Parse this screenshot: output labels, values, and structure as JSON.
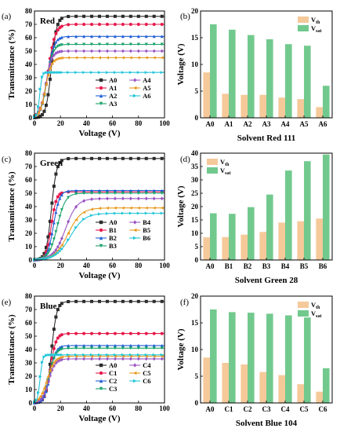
{
  "colors": {
    "vth": "#f5c99a",
    "vsat": "#72c98e"
  },
  "chart_data": [
    {
      "panel": "(a)",
      "type": "line",
      "title": "Red",
      "xlabel": "Voltage (V)",
      "ylabel": "Transmittance (%)",
      "xlim": [
        0,
        100
      ],
      "ylim": [
        0,
        80
      ],
      "xticks": [
        0,
        20,
        40,
        60,
        80,
        100
      ],
      "yticks": [
        0,
        10,
        20,
        30,
        40,
        50,
        60,
        70,
        80
      ],
      "legend_position": "bottom-right",
      "series": [
        {
          "name": "A0",
          "color": "#2b2b2b",
          "marker": "square",
          "vth": 8.5,
          "vsat": 17.5,
          "tmax": 76
        },
        {
          "name": "A1",
          "color": "#e6194b",
          "marker": "circle",
          "vth": 4.5,
          "vsat": 16.5,
          "tmax": 70
        },
        {
          "name": "A2",
          "color": "#1f5fd6",
          "marker": "triangle",
          "vth": 4.3,
          "vsat": 15.5,
          "tmax": 61
        },
        {
          "name": "A3",
          "color": "#1aa36b",
          "marker": "triangle-down",
          "vth": 4.3,
          "vsat": 14.7,
          "tmax": 55
        },
        {
          "name": "A4",
          "color": "#9a55c4",
          "marker": "diamond",
          "vth": 3.8,
          "vsat": 13.8,
          "tmax": 50
        },
        {
          "name": "A5",
          "color": "#e89a1c",
          "marker": "triangle-left",
          "vth": 3.5,
          "vsat": 13.5,
          "tmax": 45
        },
        {
          "name": "A6",
          "color": "#20c5d8",
          "marker": "triangle-right",
          "vth": 2.0,
          "vsat": 6.0,
          "tmax": 34
        }
      ]
    },
    {
      "panel": "(b)",
      "type": "bar",
      "xlabel": "Solvent Red 111",
      "ylabel": "Voltage (V)",
      "ylim": [
        0,
        20
      ],
      "yticks": [
        0,
        5,
        10,
        15,
        20
      ],
      "legend_position": "top-right",
      "categories": [
        "A0",
        "A1",
        "A2",
        "A3",
        "A4",
        "A5",
        "A6"
      ],
      "series": [
        {
          "name": "Vth",
          "name_base": "V",
          "name_sub": "th",
          "values": [
            8.5,
            4.5,
            4.3,
            4.3,
            3.8,
            3.5,
            2.0
          ]
        },
        {
          "name": "Vsat",
          "name_base": "V",
          "name_sub": "sat",
          "values": [
            17.5,
            16.5,
            15.5,
            14.7,
            13.8,
            13.5,
            6.0
          ]
        }
      ]
    },
    {
      "panel": "(c)",
      "type": "line",
      "title": "Green",
      "xlabel": "Voltage (V)",
      "ylabel": "Transmittance (%)",
      "xlim": [
        0,
        100
      ],
      "ylim": [
        0,
        80
      ],
      "xticks": [
        0,
        20,
        40,
        60,
        80,
        100
      ],
      "yticks": [
        0,
        10,
        20,
        30,
        40,
        50,
        60,
        70,
        80
      ],
      "legend_position": "bottom-right",
      "series": [
        {
          "name": "A0",
          "color": "#2b2b2b",
          "marker": "square",
          "vth": 8.5,
          "vsat": 17.5,
          "tmax": 76
        },
        {
          "name": "B1",
          "color": "#e6194b",
          "marker": "circle",
          "vth": 8.6,
          "vsat": 17.3,
          "tmax": 51
        },
        {
          "name": "B2",
          "color": "#1f5fd6",
          "marker": "triangle",
          "vth": 9.5,
          "vsat": 19.8,
          "tmax": 52
        },
        {
          "name": "B3",
          "color": "#1aa36b",
          "marker": "triangle-down",
          "vth": 10.5,
          "vsat": 24.5,
          "tmax": 50
        },
        {
          "name": "B4",
          "color": "#9a55c4",
          "marker": "diamond",
          "vth": 14.0,
          "vsat": 33.5,
          "tmax": 46
        },
        {
          "name": "B5",
          "color": "#e89a1c",
          "marker": "triangle-left",
          "vth": 14.5,
          "vsat": 37.0,
          "tmax": 39
        },
        {
          "name": "B6",
          "color": "#20c5d8",
          "marker": "triangle-right",
          "vth": 15.5,
          "vsat": 39.5,
          "tmax": 35
        }
      ]
    },
    {
      "panel": "(d)",
      "type": "bar",
      "xlabel": "Solvent Green 28",
      "ylabel": "Voltage (V)",
      "ylim": [
        0,
        40
      ],
      "yticks": [
        0,
        5,
        10,
        15,
        20,
        25,
        30,
        35,
        40
      ],
      "legend_position": "top-left",
      "categories": [
        "A0",
        "B1",
        "B2",
        "B3",
        "B4",
        "B5",
        "B6"
      ],
      "series": [
        {
          "name": "Vth",
          "name_base": "V",
          "name_sub": "th",
          "values": [
            8.5,
            8.6,
            9.5,
            10.5,
            14.0,
            14.5,
            15.5
          ]
        },
        {
          "name": "Vsat",
          "name_base": "V",
          "name_sub": "sat",
          "values": [
            17.5,
            17.3,
            19.8,
            24.5,
            33.5,
            37.0,
            39.5
          ]
        }
      ]
    },
    {
      "panel": "(e)",
      "type": "line",
      "title": "Blue",
      "xlabel": "Voltage (V)",
      "ylabel": "Transmittance (%)",
      "xlim": [
        0,
        100
      ],
      "ylim": [
        0,
        80
      ],
      "xticks": [
        0,
        20,
        40,
        60,
        80,
        100
      ],
      "yticks": [
        0,
        10,
        20,
        30,
        40,
        50,
        60,
        70,
        80
      ],
      "legend_position": "bottom-right",
      "series": [
        {
          "name": "A0",
          "color": "#2b2b2b",
          "marker": "square",
          "vth": 8.5,
          "vsat": 17.5,
          "tmax": 76
        },
        {
          "name": "C1",
          "color": "#e6194b",
          "marker": "circle",
          "vth": 7.5,
          "vsat": 17.0,
          "tmax": 52
        },
        {
          "name": "C2",
          "color": "#1f5fd6",
          "marker": "triangle",
          "vth": 7.2,
          "vsat": 16.9,
          "tmax": 43
        },
        {
          "name": "C3",
          "color": "#1aa36b",
          "marker": "triangle-down",
          "vth": 5.8,
          "vsat": 16.7,
          "tmax": 41
        },
        {
          "name": "C4",
          "color": "#9a55c4",
          "marker": "diamond",
          "vth": 5.2,
          "vsat": 16.4,
          "tmax": 33
        },
        {
          "name": "C5",
          "color": "#e89a1c",
          "marker": "triangle-left",
          "vth": 3.5,
          "vsat": 16.0,
          "tmax": 35
        },
        {
          "name": "C6",
          "color": "#20c5d8",
          "marker": "triangle-right",
          "vth": 2.1,
          "vsat": 6.5,
          "tmax": 36
        }
      ]
    },
    {
      "panel": "(f)",
      "type": "bar",
      "xlabel": "Solvent Blue 104",
      "ylabel": "Voltage (V)",
      "ylim": [
        0,
        20
      ],
      "yticks": [
        0,
        5,
        10,
        15,
        20
      ],
      "legend_position": "top-right",
      "categories": [
        "A0",
        "C1",
        "C2",
        "C3",
        "C4",
        "C5",
        "C6"
      ],
      "series": [
        {
          "name": "Vth",
          "name_base": "V",
          "name_sub": "th",
          "values": [
            8.5,
            7.5,
            7.2,
            5.8,
            5.2,
            3.5,
            2.1
          ]
        },
        {
          "name": "Vsat",
          "name_base": "V",
          "name_sub": "sat",
          "values": [
            17.5,
            17.0,
            16.9,
            16.7,
            16.4,
            16.0,
            6.5
          ]
        }
      ]
    }
  ]
}
